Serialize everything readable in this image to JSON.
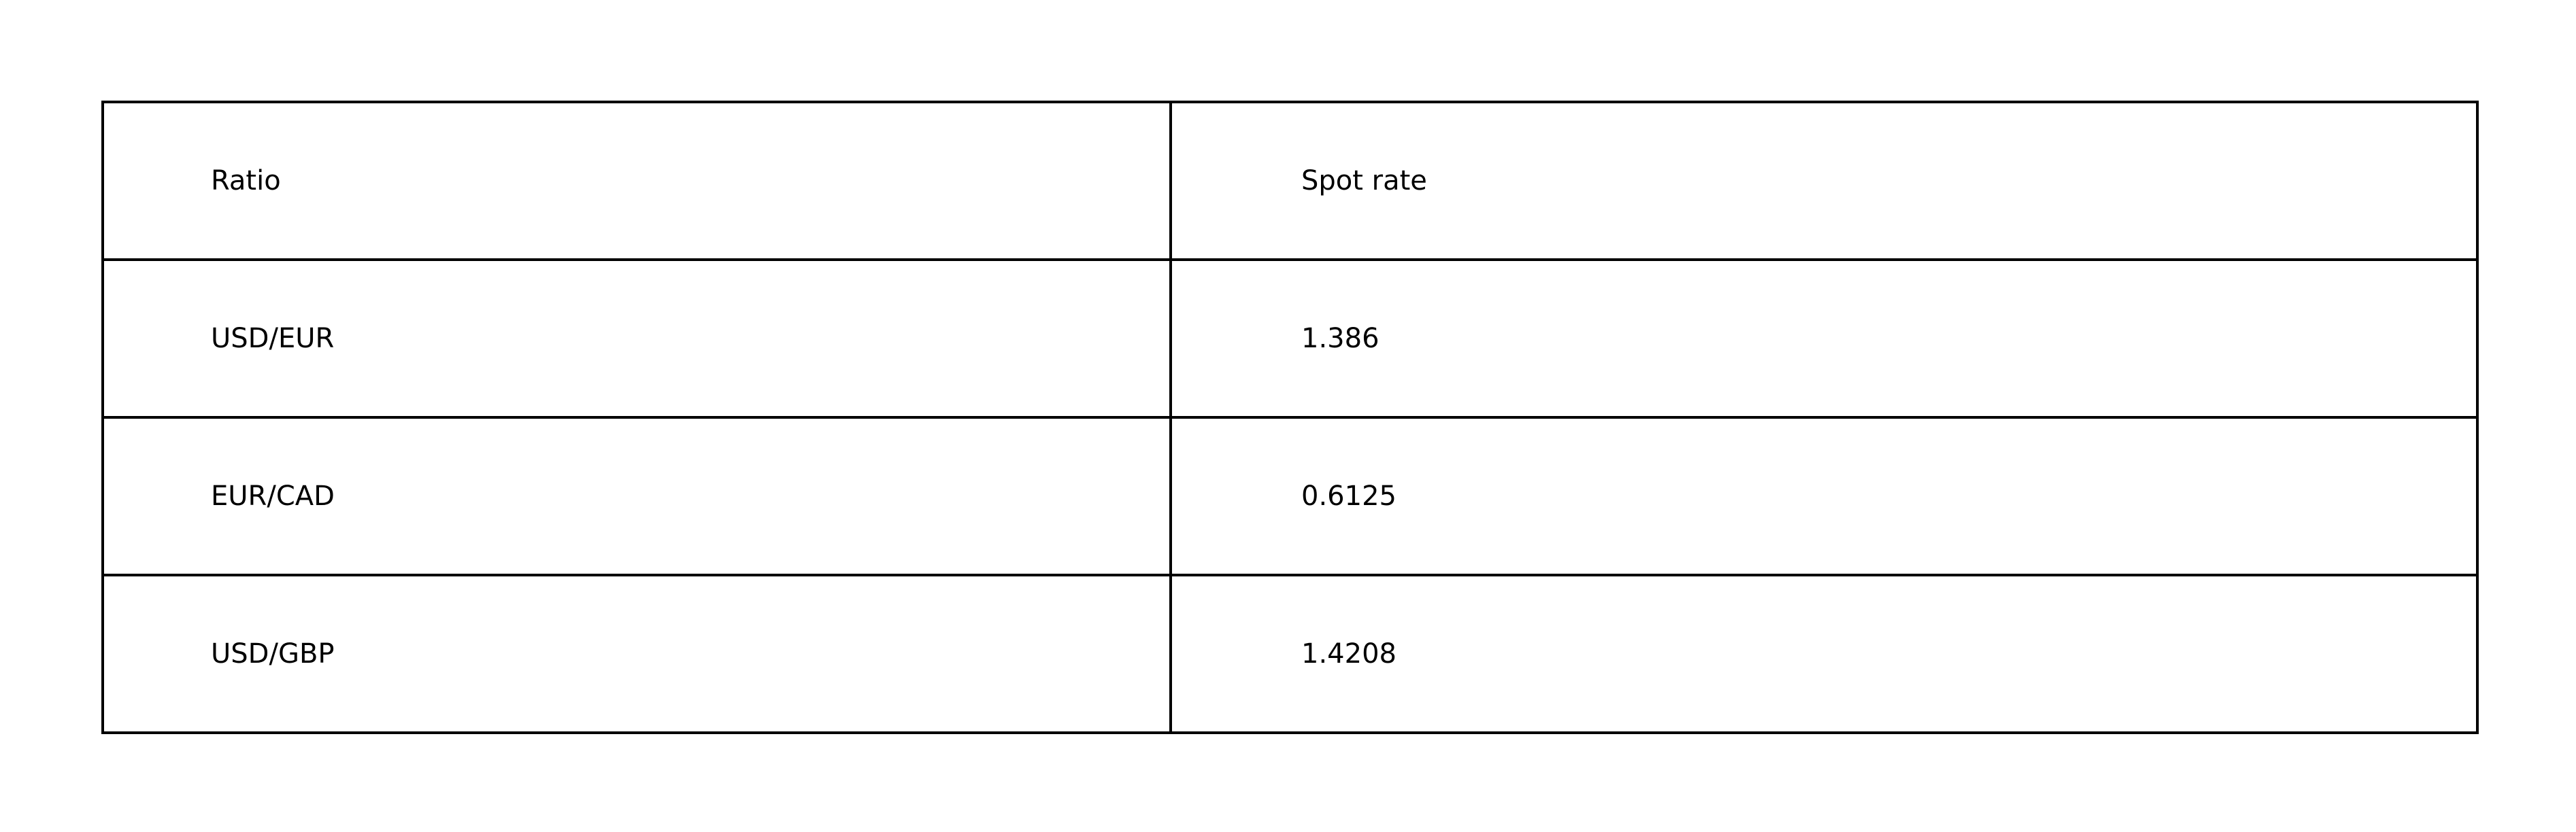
{
  "table": {
    "headers": [
      "Ratio",
      "Spot rate"
    ],
    "rows": [
      [
        "USD/EUR",
        "1.386"
      ],
      [
        "EUR/CAD",
        "0.6125"
      ],
      [
        "USD/GBP",
        "1.4208"
      ]
    ]
  }
}
